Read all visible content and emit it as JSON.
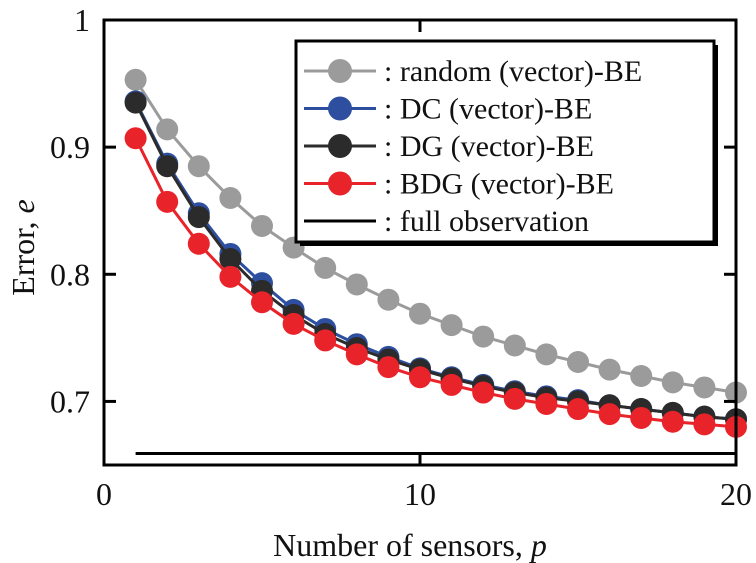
{
  "chart_data": {
    "type": "line",
    "xlabel": "Number of sensors, ",
    "xlabel_var": "p",
    "ylabel": "Error, ",
    "ylabel_var": "e",
    "xlim": [
      0,
      20
    ],
    "ylim": [
      0.65,
      1.0
    ],
    "xticks": [
      0,
      10,
      20
    ],
    "xtick_labels": [
      "0",
      "10",
      "20"
    ],
    "yticks": [
      0.7,
      0.8,
      0.9,
      1.0
    ],
    "ytick_labels": [
      "0.7",
      "0.8",
      "0.9",
      "1"
    ],
    "legend_position": "top-right",
    "series": [
      {
        "name": ": random (vector)-BE",
        "color": "#9b9b9b",
        "x": [
          1,
          2,
          3,
          4,
          5,
          6,
          7,
          8,
          9,
          10,
          11,
          12,
          13,
          14,
          15,
          16,
          17,
          18,
          19,
          20
        ],
        "values": [
          0.953,
          0.914,
          0.885,
          0.86,
          0.838,
          0.821,
          0.805,
          0.792,
          0.78,
          0.769,
          0.76,
          0.751,
          0.744,
          0.737,
          0.731,
          0.725,
          0.72,
          0.715,
          0.711,
          0.707
        ]
      },
      {
        "name": ": DC (vector)-BE",
        "color": "#2e4fa0",
        "x": [
          1,
          2,
          3,
          4,
          5,
          6,
          7,
          8,
          9,
          10,
          11,
          12,
          13,
          14,
          15,
          16,
          17,
          18,
          19,
          20
        ],
        "values": [
          0.936,
          0.887,
          0.848,
          0.816,
          0.793,
          0.772,
          0.757,
          0.745,
          0.735,
          0.726,
          0.719,
          0.713,
          0.708,
          0.704,
          0.701,
          0.697,
          0.694,
          0.691,
          0.688,
          0.686
        ]
      },
      {
        "name": ": DG (vector)-BE",
        "color": "#2b2b2b",
        "x": [
          1,
          2,
          3,
          4,
          5,
          6,
          7,
          8,
          9,
          10,
          11,
          12,
          13,
          14,
          15,
          16,
          17,
          18,
          19,
          20
        ],
        "values": [
          0.935,
          0.885,
          0.845,
          0.812,
          0.787,
          0.768,
          0.753,
          0.742,
          0.733,
          0.725,
          0.718,
          0.712,
          0.707,
          0.703,
          0.7,
          0.697,
          0.694,
          0.691,
          0.688,
          0.686
        ]
      },
      {
        "name": ": BDG (vector)-BE",
        "color": "#e8232a",
        "x": [
          1,
          2,
          3,
          4,
          5,
          6,
          7,
          8,
          9,
          10,
          11,
          12,
          13,
          14,
          15,
          16,
          17,
          18,
          19,
          20
        ],
        "values": [
          0.907,
          0.857,
          0.824,
          0.798,
          0.778,
          0.761,
          0.748,
          0.737,
          0.727,
          0.719,
          0.713,
          0.707,
          0.702,
          0.698,
          0.694,
          0.69,
          0.687,
          0.684,
          0.682,
          0.68
        ]
      }
    ],
    "reference_line": {
      "name": ": full observation",
      "color": "#000000",
      "x": [
        1,
        20
      ],
      "value": 0.659
    }
  }
}
